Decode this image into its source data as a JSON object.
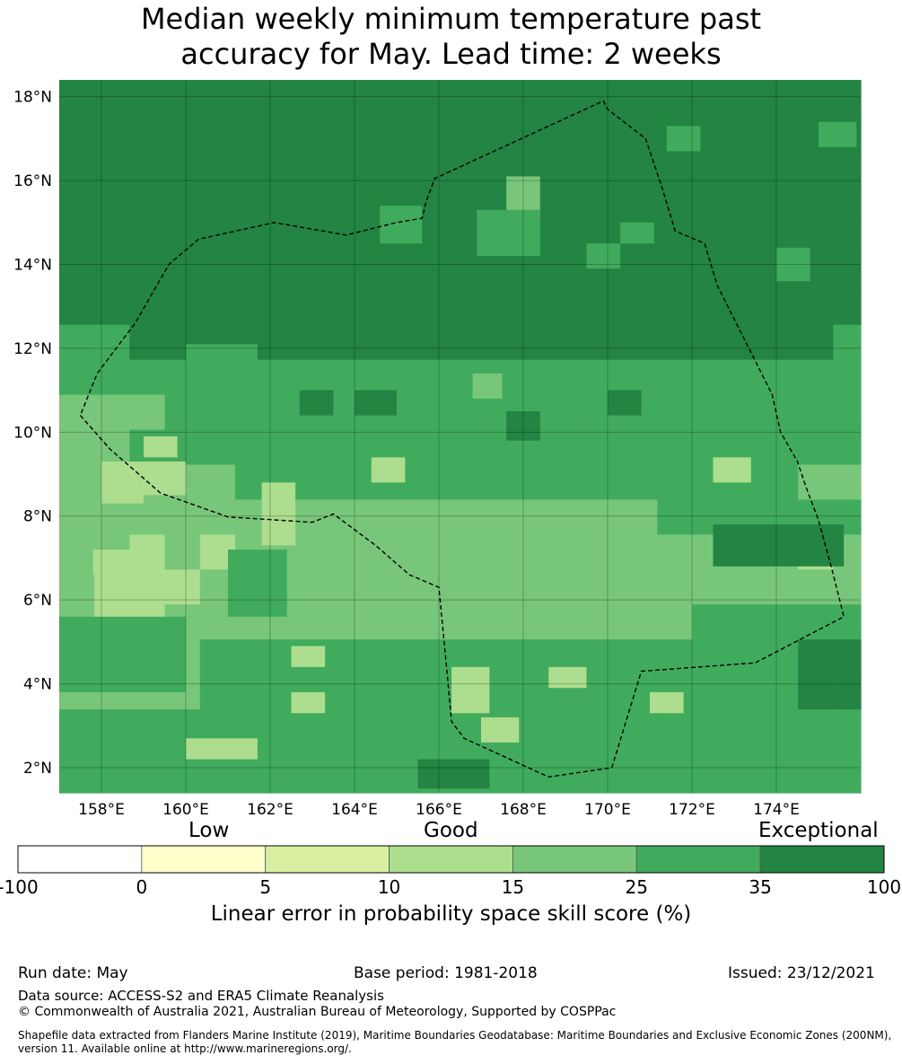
{
  "title": {
    "line1": "Median weekly minimum temperature past",
    "line2": "accuracy for May. Lead time: 2 weeks"
  },
  "map": {
    "lon_range": [
      157.0,
      176.0
    ],
    "lat_range": [
      1.4,
      18.4
    ],
    "cell_size_deg": 0.834,
    "grid_lines": true,
    "x_ticks": [
      "158°E",
      "160°E",
      "162°E",
      "164°E",
      "166°E",
      "168°E",
      "170°E",
      "172°E",
      "174°E"
    ],
    "x_tick_values": [
      158,
      160,
      162,
      164,
      166,
      168,
      170,
      172,
      174
    ],
    "y_ticks": [
      "18°N",
      "16°N",
      "14°N",
      "12°N",
      "10°N",
      "8°N",
      "6°N",
      "4°N",
      "2°N"
    ],
    "y_tick_values": [
      18,
      16,
      14,
      12,
      10,
      8,
      6,
      4,
      2
    ],
    "eez_boundary": [
      [
        157.5,
        10.4
      ],
      [
        158.2,
        9.6
      ],
      [
        159.4,
        8.55
      ],
      [
        161.0,
        7.98
      ],
      [
        163.0,
        7.85
      ],
      [
        163.5,
        8.05
      ],
      [
        164.5,
        7.3
      ],
      [
        165.3,
        6.6
      ],
      [
        166.0,
        6.3
      ],
      [
        166.2,
        4.2
      ],
      [
        166.3,
        3.1
      ],
      [
        166.6,
        2.7
      ],
      [
        168.6,
        1.78
      ],
      [
        170.1,
        2.0
      ],
      [
        170.8,
        4.3
      ],
      [
        173.5,
        4.5
      ],
      [
        175.6,
        5.6
      ],
      [
        175.3,
        6.8
      ],
      [
        175.0,
        7.9
      ],
      [
        174.7,
        8.7
      ],
      [
        174.5,
        9.3
      ],
      [
        174.1,
        10.0
      ],
      [
        173.9,
        10.9
      ],
      [
        173.2,
        12.3
      ],
      [
        172.6,
        13.5
      ],
      [
        172.3,
        14.5
      ],
      [
        171.6,
        14.8
      ],
      [
        171.3,
        15.8
      ],
      [
        170.9,
        17.0
      ],
      [
        170.0,
        17.7
      ],
      [
        169.9,
        17.9
      ],
      [
        165.9,
        16.05
      ],
      [
        165.7,
        15.5
      ],
      [
        165.6,
        15.1
      ],
      [
        165.0,
        15.0
      ],
      [
        163.8,
        14.7
      ],
      [
        162.1,
        15.0
      ],
      [
        160.3,
        14.6
      ],
      [
        159.6,
        14.0
      ],
      [
        158.8,
        12.6
      ],
      [
        157.9,
        11.4
      ],
      [
        157.5,
        10.4
      ]
    ],
    "skill_grid_rows_north_to_south": [
      "66666666666666666666666665",
      "66666666666666666666666555",
      "66666666666666666666666666",
      "66666666666666666666666666",
      "66666666666666666666666666",
      "66666666666666666666666666",
      "66666666666666666666666666",
      "55666666666666666666665555",
      "55555555555555555555555555",
      "44455555555555555555555555",
      "44555555555555555555555554",
      "44444555555555555555544444",
      "44444444444444444555555544",
      "44343444444444444444434444",
      "43334444444444444444444444",
      "43344444444444444455555554",
      "44445555555555555555566666",
      "44445555555555555555566666",
      "55555555555555555555555555",
      "55555555555555555555555555",
      "55555555555555555555555555",
      "44444444444444444444444455",
      "44444444444444444444444455",
      "44444444444444444444444455",
      "44444444444444444555555555",
      "44445555555555555555555555",
      "44455555555555555555555555",
      "44455555555555555556555555",
      "44455555555555555556555555",
      "44455555555555555556555555"
    ],
    "skill_patches": [
      {
        "lon": [
          166.8,
          167.5
        ],
        "lat": [
          10.8,
          11.4
        ],
        "class": 4
      },
      {
        "lon": [
          164.0,
          165.0
        ],
        "lat": [
          10.4,
          11.0
        ],
        "class": 6
      },
      {
        "lon": [
          170.0,
          170.8
        ],
        "lat": [
          10.4,
          11.0
        ],
        "class": 6
      },
      {
        "lon": [
          167.6,
          168.4
        ],
        "lat": [
          9.8,
          10.5
        ],
        "class": 6
      },
      {
        "lon": [
          172.5,
          173.4
        ],
        "lat": [
          8.8,
          9.4
        ],
        "class": 3
      },
      {
        "lon": [
          164.4,
          165.2
        ],
        "lat": [
          8.8,
          9.4
        ],
        "class": 3
      },
      {
        "lon": [
          172.5,
          175.6
        ],
        "lat": [
          6.8,
          7.8
        ],
        "class": 6
      },
      {
        "lon": [
          174.0,
          174.8
        ],
        "lat": [
          13.6,
          14.4
        ],
        "class": 5
      },
      {
        "lon": [
          172.6,
          173.5
        ],
        "lat": [
          12.3,
          12.9
        ],
        "class": 6
      },
      {
        "lon": [
          171.4,
          172.2
        ],
        "lat": [
          16.7,
          17.3
        ],
        "class": 5
      },
      {
        "lon": [
          175.0,
          175.9
        ],
        "lat": [
          16.8,
          17.4
        ],
        "class": 5
      },
      {
        "lon": [
          164.6,
          165.6
        ],
        "lat": [
          14.5,
          15.4
        ],
        "class": 5
      },
      {
        "lon": [
          167.6,
          168.4
        ],
        "lat": [
          15.1,
          16.1
        ],
        "class": 4
      },
      {
        "lon": [
          166.9,
          168.4
        ],
        "lat": [
          14.2,
          15.3
        ],
        "class": 5
      },
      {
        "lon": [
          169.5,
          170.3
        ],
        "lat": [
          13.9,
          14.5
        ],
        "class": 5
      },
      {
        "lon": [
          170.3,
          171.1
        ],
        "lat": [
          14.5,
          15.0
        ],
        "class": 5
      },
      {
        "lon": [
          160.0,
          161.7
        ],
        "lat": [
          11.4,
          12.1
        ],
        "class": 5
      },
      {
        "lon": [
          162.7,
          163.5
        ],
        "lat": [
          10.4,
          11.0
        ],
        "class": 6
      },
      {
        "lon": [
          166.3,
          167.2
        ],
        "lat": [
          3.3,
          4.4
        ],
        "class": 3
      },
      {
        "lon": [
          167.0,
          167.9
        ],
        "lat": [
          2.6,
          3.2
        ],
        "class": 3
      },
      {
        "lon": [
          168.6,
          169.5
        ],
        "lat": [
          3.9,
          4.4
        ],
        "class": 3
      },
      {
        "lon": [
          171.0,
          171.8
        ],
        "lat": [
          3.3,
          3.8
        ],
        "class": 3
      },
      {
        "lon": [
          160.0,
          161.7
        ],
        "lat": [
          2.2,
          2.7
        ],
        "class": 3
      },
      {
        "lon": [
          162.5,
          163.3
        ],
        "lat": [
          3.3,
          3.8
        ],
        "class": 3
      },
      {
        "lon": [
          162.5,
          163.3
        ],
        "lat": [
          4.4,
          4.9
        ],
        "class": 3
      },
      {
        "lon": [
          161.8,
          162.6
        ],
        "lat": [
          7.3,
          8.8
        ],
        "class": 3
      },
      {
        "lon": [
          158.0,
          159.0
        ],
        "lat": [
          8.3,
          9.3
        ],
        "class": 3
      },
      {
        "lon": [
          158.9,
          160.0
        ],
        "lat": [
          8.5,
          9.3
        ],
        "class": 3
      },
      {
        "lon": [
          159.0,
          159.8
        ],
        "lat": [
          9.4,
          9.9
        ],
        "class": 3
      },
      {
        "lon": [
          157.8,
          158.7
        ],
        "lat": [
          6.6,
          7.2
        ],
        "class": 3
      },
      {
        "lon": [
          165.5,
          167.2
        ],
        "lat": [
          1.5,
          2.2
        ],
        "class": 6
      },
      {
        "lon": [
          157.0,
          160.0
        ],
        "lat": [
          3.8,
          5.6
        ],
        "class": 5
      },
      {
        "lon": [
          158.3,
          160.0
        ],
        "lat": [
          2.6,
          3.2
        ],
        "class": 5
      },
      {
        "lon": [
          161.0,
          162.4
        ],
        "lat": [
          5.6,
          7.2
        ],
        "class": 5
      }
    ]
  },
  "colorbar": {
    "category_labels": [
      "Low",
      "Good",
      "Exceptional"
    ],
    "boundaries": [
      "-100",
      "0",
      "5",
      "10",
      "15",
      "25",
      "35",
      "100"
    ],
    "colors": [
      "#ffffff",
      "#ffffcc",
      "#d9f0a3",
      "#addd8e",
      "#78c679",
      "#41ab5d",
      "#238443"
    ],
    "label": "Linear error in probability space skill score (%)"
  },
  "footer": {
    "run_date": "Run date: May",
    "base_period": "Base period: 1981-2018",
    "issued": "Issued: 23/12/2021",
    "data_source": "Data source: ACCESS-S2 and ERA5 Climate Reanalysis",
    "copyright": "© Commonwealth of Australia 2021, Australian Bureau of Meteorology, Supported by COSPPac",
    "shapefile_line1": "Shapefile data extracted from Flanders Marine Institute (2019), Maritime Boundaries Geodatabase: Maritime Boundaries and Exclusive Economic Zones (200NM),",
    "shapefile_line2": "version 11. Available online at http://www.marineregions.org/."
  }
}
